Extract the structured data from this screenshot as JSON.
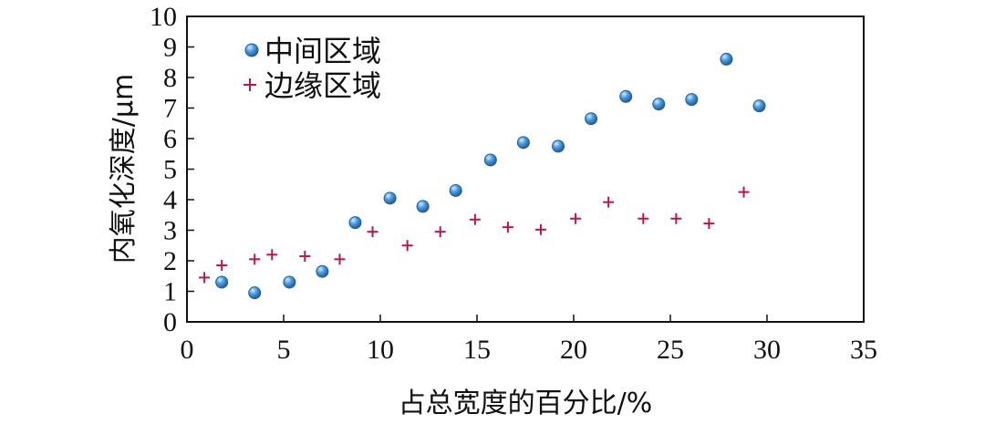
{
  "chart_data": {
    "type": "scatter",
    "title": "",
    "xlabel": "占总宽度的百分比/%",
    "ylabel": "内氧化深度/μm",
    "xlim": [
      0,
      35
    ],
    "ylim": [
      0,
      10
    ],
    "xticks": [
      0,
      5,
      10,
      15,
      20,
      25,
      30,
      35
    ],
    "yticks": [
      0,
      1,
      2,
      3,
      4,
      5,
      6,
      7,
      8,
      9,
      10
    ],
    "grid": false,
    "legend_position": "top-left",
    "series": [
      {
        "name": "中间区域",
        "marker": "circle",
        "color": "#3a8fd6",
        "points": [
          [
            1.8,
            1.3
          ],
          [
            3.5,
            0.95
          ],
          [
            5.3,
            1.3
          ],
          [
            7.0,
            1.65
          ],
          [
            8.7,
            3.25
          ],
          [
            10.5,
            4.05
          ],
          [
            12.2,
            3.78
          ],
          [
            13.9,
            4.3
          ],
          [
            15.7,
            5.3
          ],
          [
            17.4,
            5.87
          ],
          [
            19.2,
            5.75
          ],
          [
            20.9,
            6.65
          ],
          [
            22.7,
            7.38
          ],
          [
            24.4,
            7.13
          ],
          [
            26.1,
            7.28
          ],
          [
            27.9,
            8.6
          ],
          [
            29.6,
            7.07
          ]
        ]
      },
      {
        "name": "边缘区域",
        "marker": "plus",
        "color": "#b8174a",
        "points": [
          [
            0.9,
            1.45
          ],
          [
            1.8,
            1.85
          ],
          [
            3.5,
            2.05
          ],
          [
            4.4,
            2.2
          ],
          [
            6.1,
            2.15
          ],
          [
            7.9,
            2.05
          ],
          [
            9.6,
            2.95
          ],
          [
            11.4,
            2.5
          ],
          [
            13.1,
            2.95
          ],
          [
            14.9,
            3.35
          ],
          [
            16.6,
            3.1
          ],
          [
            18.3,
            3.02
          ],
          [
            20.1,
            3.38
          ],
          [
            21.8,
            3.92
          ],
          [
            23.6,
            3.38
          ],
          [
            25.3,
            3.38
          ],
          [
            27.0,
            3.22
          ],
          [
            28.8,
            4.25
          ]
        ]
      }
    ]
  }
}
